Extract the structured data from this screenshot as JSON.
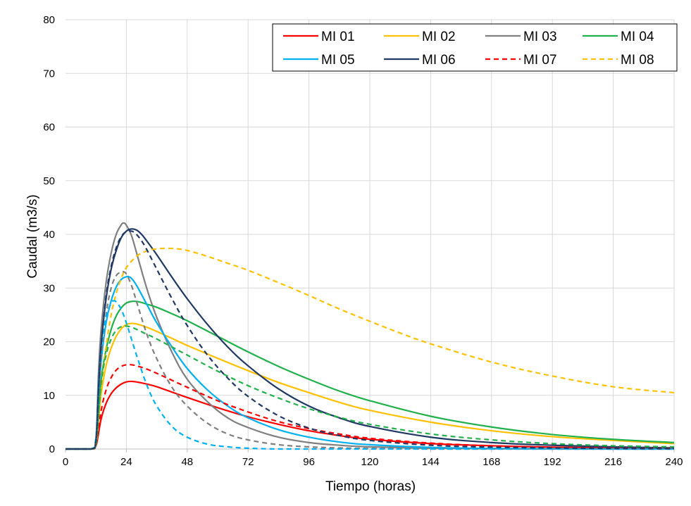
{
  "chart_data": {
    "type": "line",
    "title": "",
    "xlabel": "Tiempo (horas)",
    "ylabel": "Caudal (m3/s)",
    "xlim": [
      0,
      240
    ],
    "ylim": [
      0,
      80
    ],
    "xticks": [
      0,
      24,
      48,
      72,
      96,
      120,
      144,
      168,
      192,
      216,
      240
    ],
    "yticks": [
      0,
      10,
      20,
      30,
      40,
      50,
      60,
      70,
      80
    ],
    "grid": true,
    "legend_position": "top-right",
    "series": [
      {
        "name": "MI 01",
        "color": "#ff0000",
        "dash": "solid",
        "x": [
          0,
          10,
          12,
          14,
          16,
          18,
          20,
          22,
          24,
          26,
          28,
          32,
          36,
          42,
          48,
          60,
          72,
          84,
          96,
          108,
          120,
          144,
          168,
          192,
          216,
          240
        ],
        "y": [
          0,
          0,
          0.5,
          5.5,
          8.5,
          10.3,
          11.4,
          12.1,
          12.5,
          12.6,
          12.5,
          12.1,
          11.6,
          10.6,
          9.6,
          7.7,
          6.0,
          4.6,
          3.4,
          2.5,
          1.8,
          1.0,
          0.6,
          0.35,
          0.2,
          0.1
        ]
      },
      {
        "name": "MI 02",
        "color": "#ffc000",
        "dash": "solid",
        "x": [
          0,
          10,
          12,
          14,
          16,
          18,
          20,
          22,
          24,
          26,
          28,
          32,
          36,
          42,
          48,
          60,
          72,
          84,
          96,
          108,
          120,
          144,
          168,
          192,
          216,
          240
        ],
        "y": [
          0,
          0,
          0.6,
          10.0,
          15.5,
          18.8,
          21.0,
          22.4,
          23.2,
          23.4,
          23.3,
          22.7,
          21.9,
          20.6,
          19.3,
          16.9,
          14.6,
          12.4,
          10.5,
          8.7,
          7.2,
          5.0,
          3.4,
          2.3,
          1.6,
          1.0
        ]
      },
      {
        "name": "MI 03",
        "color": "#7f7f7f",
        "dash": "solid",
        "x": [
          0,
          10,
          12,
          13,
          14,
          16,
          18,
          20,
          22,
          23,
          24,
          26,
          28,
          32,
          36,
          42,
          48,
          56,
          64,
          72,
          84,
          96,
          108,
          120,
          144,
          168,
          192,
          216,
          240
        ],
        "y": [
          0,
          0,
          2.0,
          14.0,
          22.0,
          31.0,
          36.5,
          40.0,
          41.8,
          42.1,
          41.7,
          39.8,
          36.6,
          30.0,
          24.5,
          18.0,
          13.0,
          8.8,
          5.8,
          4.0,
          2.2,
          1.2,
          0.7,
          0.4,
          0.15,
          0.05,
          0,
          0,
          0
        ]
      },
      {
        "name": "MI 04",
        "color": "#21b14c",
        "dash": "solid",
        "x": [
          0,
          10,
          12,
          14,
          16,
          18,
          20,
          22,
          24,
          26,
          28,
          30,
          32,
          36,
          42,
          48,
          60,
          72,
          84,
          96,
          108,
          120,
          144,
          168,
          192,
          216,
          240
        ],
        "y": [
          0,
          0,
          0.8,
          12.5,
          18.5,
          22.3,
          24.8,
          26.3,
          27.2,
          27.5,
          27.5,
          27.3,
          27.0,
          26.4,
          25.2,
          23.9,
          21.0,
          18.1,
          15.4,
          13.0,
          10.8,
          9.0,
          6.1,
          4.1,
          2.7,
          1.8,
          1.2
        ]
      },
      {
        "name": "MI 05",
        "color": "#00b0f0",
        "dash": "solid",
        "x": [
          0,
          10,
          12,
          13,
          14,
          16,
          18,
          20,
          22,
          24,
          25,
          26,
          28,
          32,
          36,
          42,
          48,
          56,
          64,
          72,
          84,
          96,
          108,
          120,
          144,
          168,
          192,
          216,
          240
        ],
        "y": [
          0,
          0,
          1.0,
          9.0,
          16.0,
          23.5,
          27.6,
          30.2,
          31.6,
          32.1,
          32.1,
          31.8,
          30.5,
          27.0,
          23.5,
          19.0,
          15.0,
          11.0,
          8.0,
          5.8,
          3.6,
          2.2,
          1.3,
          0.8,
          0.3,
          0.1,
          0.05,
          0,
          0
        ]
      },
      {
        "name": "MI 06",
        "color": "#1f3864",
        "dash": "solid",
        "x": [
          0,
          10,
          12,
          13,
          14,
          16,
          18,
          20,
          22,
          24,
          26,
          28,
          30,
          32,
          36,
          42,
          48,
          56,
          64,
          72,
          84,
          96,
          108,
          120,
          144,
          168,
          192,
          216,
          240
        ],
        "y": [
          0,
          0,
          1.5,
          11.0,
          19.0,
          28.0,
          33.5,
          37.0,
          39.4,
          40.6,
          41.0,
          40.8,
          40.0,
          38.8,
          36.2,
          32.0,
          28.0,
          23.2,
          19.0,
          15.5,
          11.2,
          8.0,
          5.8,
          4.2,
          2.2,
          1.2,
          0.7,
          0.4,
          0.2
        ]
      },
      {
        "name": "MI 07",
        "color": "#ff0000",
        "dash": "dashed",
        "x": [
          0,
          10,
          12,
          14,
          16,
          18,
          20,
          22,
          24,
          26,
          28,
          32,
          36,
          42,
          48,
          60,
          72,
          84,
          96,
          108,
          120,
          144,
          168,
          192,
          216,
          240
        ],
        "y": [
          0,
          0,
          0.5,
          7.0,
          11.0,
          13.3,
          14.7,
          15.4,
          15.7,
          15.7,
          15.5,
          14.9,
          14.1,
          12.8,
          11.5,
          9.0,
          6.9,
          5.1,
          3.8,
          2.8,
          2.0,
          1.1,
          0.6,
          0.3,
          0.15,
          0.1
        ]
      },
      {
        "name": "MI 08",
        "color": "#ffc000",
        "dash": "dashed",
        "x": [
          0,
          10,
          12,
          14,
          16,
          18,
          20,
          22,
          24,
          28,
          32,
          36,
          40,
          44,
          48,
          56,
          64,
          72,
          84,
          96,
          108,
          120,
          132,
          144,
          168,
          192,
          216,
          240
        ],
        "y": [
          0,
          0,
          1.5,
          11.0,
          19.0,
          25.0,
          29.0,
          31.8,
          33.8,
          35.9,
          36.9,
          37.3,
          37.4,
          37.3,
          37.0,
          35.9,
          34.6,
          33.3,
          31.0,
          28.6,
          26.1,
          23.8,
          21.6,
          19.6,
          16.2,
          13.6,
          11.6,
          10.5
        ]
      },
      {
        "name": "",
        "color": "#7f7f7f",
        "dash": "dashed",
        "x": [
          0,
          10,
          12,
          14,
          16,
          18,
          20,
          22,
          23,
          24,
          26,
          28,
          32,
          36,
          42,
          48,
          56,
          64,
          72,
          84,
          96,
          108,
          120,
          144,
          168,
          192,
          216,
          240
        ],
        "y": [
          0,
          0,
          2.0,
          16.0,
          25.0,
          30.0,
          32.3,
          33.0,
          33.0,
          32.6,
          30.5,
          27.5,
          21.5,
          16.8,
          11.5,
          8.0,
          4.8,
          2.8,
          1.7,
          0.8,
          0.4,
          0.2,
          0.1,
          0,
          0,
          0,
          0,
          0
        ]
      },
      {
        "name": "",
        "color": "#00b0f0",
        "dash": "dashed",
        "x": [
          0,
          10,
          12,
          13,
          14,
          16,
          18,
          19,
          20,
          22,
          24,
          26,
          28,
          32,
          36,
          42,
          48,
          56,
          64,
          72,
          84,
          96,
          120,
          144,
          168,
          192,
          216,
          240
        ],
        "y": [
          0,
          0,
          2.0,
          12.0,
          18.5,
          24.5,
          27.2,
          27.6,
          27.4,
          26.0,
          23.5,
          20.5,
          17.5,
          12.0,
          8.0,
          4.2,
          2.2,
          0.9,
          0.4,
          0.15,
          0,
          0,
          0,
          0,
          0,
          0,
          0,
          0
        ]
      },
      {
        "name": "",
        "color": "#21b14c",
        "dash": "dashed",
        "x": [
          0,
          10,
          12,
          14,
          16,
          18,
          20,
          22,
          24,
          26,
          28,
          32,
          36,
          42,
          48,
          60,
          72,
          84,
          96,
          108,
          120,
          144,
          168,
          192,
          216,
          240
        ],
        "y": [
          0,
          0,
          0.8,
          12.0,
          17.5,
          20.5,
          22.1,
          22.8,
          22.9,
          22.7,
          22.3,
          21.4,
          20.5,
          19.0,
          17.5,
          14.5,
          11.8,
          9.5,
          7.5,
          5.9,
          4.6,
          2.8,
          1.7,
          1.0,
          0.6,
          0.4
        ]
      },
      {
        "name": "",
        "color": "#1f3864",
        "dash": "dashed",
        "x": [
          0,
          10,
          12,
          13,
          14,
          16,
          18,
          20,
          22,
          24,
          26,
          27,
          28,
          30,
          32,
          36,
          42,
          48,
          56,
          64,
          72,
          84,
          96,
          108,
          120,
          144,
          168,
          192,
          216,
          240
        ],
        "y": [
          0,
          0,
          1.5,
          11.0,
          19.0,
          28.5,
          34.0,
          37.5,
          39.6,
          40.5,
          40.6,
          40.4,
          40.0,
          38.8,
          37.2,
          33.5,
          28.0,
          23.0,
          17.5,
          13.2,
          9.8,
          6.2,
          3.9,
          2.5,
          1.6,
          0.7,
          0.35,
          0.2,
          0.1,
          0.05
        ]
      }
    ]
  }
}
